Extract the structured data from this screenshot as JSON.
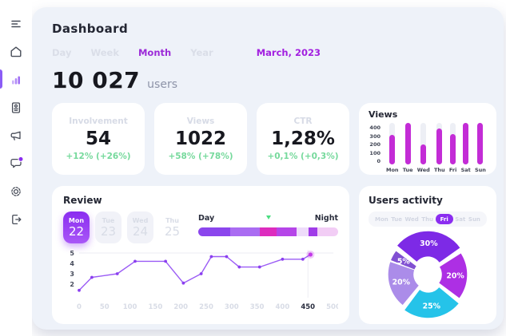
{
  "window": {
    "bg": "#ffffff",
    "panel_bg": "#eef2f9"
  },
  "sidebar": {
    "items": [
      {
        "name": "menu"
      },
      {
        "name": "home"
      },
      {
        "name": "statistics",
        "active": true
      },
      {
        "name": "reports"
      },
      {
        "name": "announcements"
      },
      {
        "name": "messages",
        "badge": true
      },
      {
        "name": "settings"
      },
      {
        "name": "logout"
      }
    ]
  },
  "header": {
    "title": "Dashboard",
    "tabs": [
      {
        "label": "Day",
        "active": false
      },
      {
        "label": "Week",
        "active": false
      },
      {
        "label": "Month",
        "active": true
      },
      {
        "label": "Year",
        "active": false
      }
    ],
    "date": "March, 2023",
    "users_count": "10 027",
    "users_label": "users"
  },
  "stats": [
    {
      "title": "Involvement",
      "value": "54",
      "change": "+12% (+26%)"
    },
    {
      "title": "Views",
      "value": "1022",
      "change": "+58% (+78%)"
    },
    {
      "title": "CTR",
      "value": "1,28%",
      "change": "+0,1% (+0,3%)"
    }
  ],
  "views_card": {
    "title": "Views"
  },
  "review": {
    "title": "Review",
    "dates": [
      {
        "day": "Mon",
        "num": "22",
        "state": "selected"
      },
      {
        "day": "Tue",
        "num": "23",
        "state": "idle"
      },
      {
        "day": "Wed",
        "num": "24",
        "state": "idle"
      },
      {
        "day": "Thu",
        "num": "25",
        "state": "ghost"
      }
    ],
    "range": {
      "left_label": "Day",
      "right_label": "Night",
      "marker_percent": 50,
      "segments": [
        {
          "color": "#8b46ed",
          "percent": 23
        },
        {
          "color": "#aa6cf2",
          "percent": 21
        },
        {
          "color": "#dd2cbe",
          "percent": 12
        },
        {
          "color": "#b545e8",
          "percent": 14
        },
        {
          "color": "#eedcfa",
          "percent": 9
        },
        {
          "color": "#a03ce8",
          "percent": 6
        },
        {
          "color": "#f2cdf5",
          "percent": 15
        }
      ]
    }
  },
  "users_activity": {
    "title": "Users activity",
    "days": [
      "Mon",
      "Tue",
      "Wed",
      "Thu",
      "Fri",
      "Sat",
      "Sun"
    ],
    "active_day": "Fri"
  },
  "chart_data": [
    {
      "id": "views_bars",
      "type": "bar",
      "title": "Views",
      "categories": [
        "Mon",
        "Tue",
        "Wed",
        "Thu",
        "Fri",
        "Sat",
        "Sun"
      ],
      "values": [
        300,
        420,
        200,
        360,
        310,
        420,
        420
      ],
      "yticks": [
        400,
        300,
        200,
        100,
        0
      ],
      "ylim": [
        0,
        420
      ],
      "bar_color": "#c32cd6",
      "track_color": "#edeff5"
    },
    {
      "id": "review_line",
      "type": "line",
      "x": [
        0,
        25,
        75,
        110,
        170,
        205,
        240,
        260,
        290,
        315,
        355,
        400,
        440,
        455
      ],
      "y": [
        1.4,
        2.65,
        3.0,
        4.2,
        4.2,
        2.1,
        3.0,
        4.65,
        4.65,
        3.65,
        3.65,
        4.4,
        4.4,
        4.85
      ],
      "xticks": [
        0,
        50,
        100,
        150,
        200,
        250,
        300,
        350,
        400,
        450,
        500
      ],
      "yticks": [
        5,
        4,
        3,
        2
      ],
      "highlight_xtick": 450,
      "xlim": [
        0,
        500
      ],
      "ylim": [
        1,
        5
      ],
      "line_color": "#9b5cf5",
      "point_color": "#8b3ff0",
      "last_point_color": "#c238e8",
      "grid_color": "#ececf3",
      "tick_color": "#d8dce6",
      "ytick_color": "#454a5a",
      "highlight_tick_color": "#2a2e3f"
    },
    {
      "id": "activity_donut",
      "type": "pie",
      "labels": [
        "30%",
        "20%",
        "25%",
        "20%",
        "5%"
      ],
      "values": [
        30,
        20,
        25,
        20,
        5
      ],
      "colors": [
        "#7d2ae6",
        "#ad2fe4",
        "#25c3e9",
        "#ab8ce9",
        "#8150d2"
      ],
      "start_angle": -52,
      "exploded": [
        true,
        false,
        true,
        false,
        false
      ],
      "label_color": "#ffffff"
    }
  ],
  "colors": {
    "accent_purple": "#9c2bd8",
    "accent_magenta": "#a21fe0",
    "bar_magenta": "#c32cd6",
    "green_positive": "#76d99c",
    "marker_green": "#4ade80",
    "inactive_text": "#d8dce6"
  }
}
